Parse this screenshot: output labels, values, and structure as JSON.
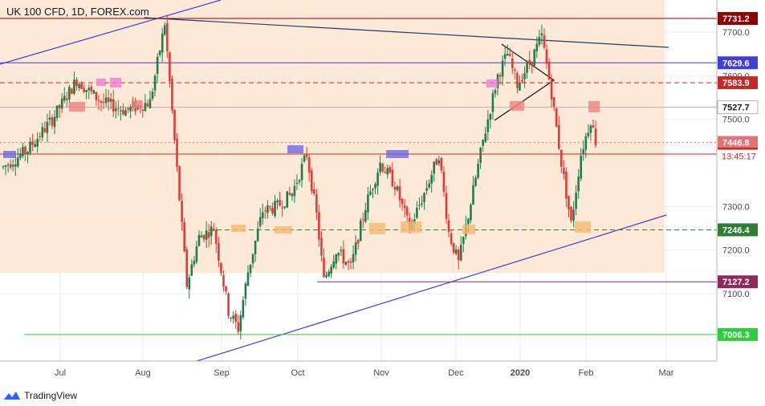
{
  "header": {
    "symbol_title": "UK 100 CFD, 1D, FOREX.com"
  },
  "footer": {
    "brand": "TradingView"
  },
  "colors": {
    "up": "#26a69a",
    "up_dark": "#1e7d4a",
    "down": "#e53935",
    "zone": "#fde9d6",
    "background": "#ffffff"
  },
  "chart_data": {
    "type": "candlestick",
    "title": "UK 100 CFD, 1D, FOREX.com",
    "x_tick_labels": [
      "Jul",
      "Aug",
      "Sep",
      "Oct",
      "Nov",
      "Dec",
      "2020",
      "Feb",
      "Mar"
    ],
    "y_tick_labels": [
      "7700.0",
      "7600.0",
      "7500.0",
      "7300.0",
      "7200.0",
      "7100.0"
    ],
    "ylim": [
      6950,
      7780
    ],
    "price_levels": [
      {
        "label": "7731.2",
        "value": 7731.2,
        "color": "#8b0000",
        "style": "solid"
      },
      {
        "label": "7629.6",
        "value": 7629.6,
        "color": "#3f3fd4",
        "style": "solid"
      },
      {
        "label": "7583.9",
        "value": 7583.9,
        "color": "#c62828",
        "style": "dashed"
      },
      {
        "label": "7527.7",
        "value": 7527.7,
        "color": "#b0b0b0",
        "style": "solid"
      },
      {
        "label": "7446.8",
        "value": 7446.8,
        "color": "#e57373",
        "style": "dotted"
      },
      {
        "label": "7420.2",
        "value": 7420.2,
        "color": "#c62828",
        "style": "solid"
      },
      {
        "label": "7246.4",
        "value": 7246.4,
        "color": "#2e7d32",
        "style": "dashed"
      },
      {
        "label": "7127.2",
        "value": 7127.2,
        "color": "#8e2a5a",
        "style": "solid"
      },
      {
        "label": "7006.3",
        "value": 7006.3,
        "color": "#2ecc40",
        "style": "solid"
      }
    ],
    "countdown_label": "13:45:17",
    "candles_approx": "daily OHLC series Jun 2019 – Feb 2020, approximated",
    "candle_keypoints": [
      [
        0,
        7390
      ],
      [
        10,
        7430
      ],
      [
        20,
        7500
      ],
      [
        30,
        7590
      ],
      [
        40,
        7540
      ],
      [
        50,
        7520
      ],
      [
        60,
        7540
      ],
      [
        66,
        7720
      ],
      [
        70,
        7450
      ],
      [
        75,
        7120
      ],
      [
        80,
        7230
      ],
      [
        86,
        7250
      ],
      [
        92,
        7060
      ],
      [
        96,
        7020
      ],
      [
        100,
        7150
      ],
      [
        106,
        7290
      ],
      [
        112,
        7300
      ],
      [
        118,
        7330
      ],
      [
        124,
        7420
      ],
      [
        128,
        7280
      ],
      [
        131,
        7130
      ],
      [
        136,
        7200
      ],
      [
        142,
        7160
      ],
      [
        148,
        7300
      ],
      [
        154,
        7400
      ],
      [
        160,
        7350
      ],
      [
        166,
        7250
      ],
      [
        172,
        7330
      ],
      [
        178,
        7420
      ],
      [
        182,
        7240
      ],
      [
        186,
        7170
      ],
      [
        190,
        7280
      ],
      [
        196,
        7450
      ],
      [
        202,
        7600
      ],
      [
        206,
        7650
      ],
      [
        210,
        7580
      ],
      [
        216,
        7640
      ],
      [
        220,
        7690
      ],
      [
        224,
        7560
      ],
      [
        228,
        7400
      ],
      [
        232,
        7260
      ],
      [
        236,
        7420
      ],
      [
        240,
        7500
      ],
      [
        242,
        7450
      ]
    ]
  }
}
